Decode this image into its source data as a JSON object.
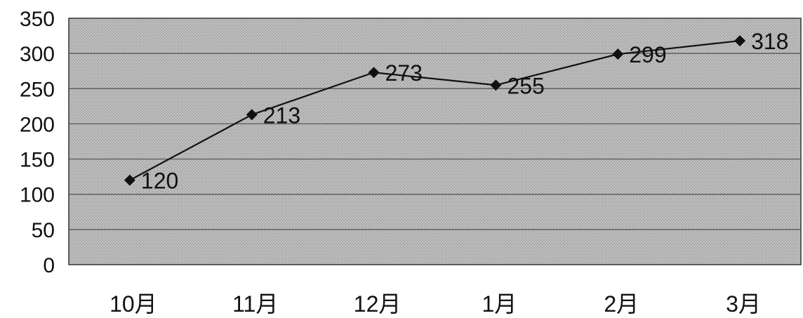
{
  "chart_data": {
    "type": "line",
    "categories": [
      "10月",
      "11月",
      "12月",
      "1月",
      "2月",
      "3月"
    ],
    "values": [
      120,
      213,
      273,
      255,
      299,
      318
    ],
    "data_labels": [
      "120",
      "213",
      "273",
      "255",
      "299",
      "318"
    ],
    "y_ticks": [
      "0",
      "50",
      "100",
      "150",
      "200",
      "250",
      "300",
      "350"
    ],
    "ylim": [
      0,
      350
    ],
    "ystep": 50,
    "grid": true,
    "legend": "none",
    "marker": "diamond"
  },
  "colors": {
    "plot_background": "#b4b4b4",
    "gridline": "#4a4a4a",
    "series_line": "#111111",
    "marker": "#111111",
    "text": "#111111"
  }
}
